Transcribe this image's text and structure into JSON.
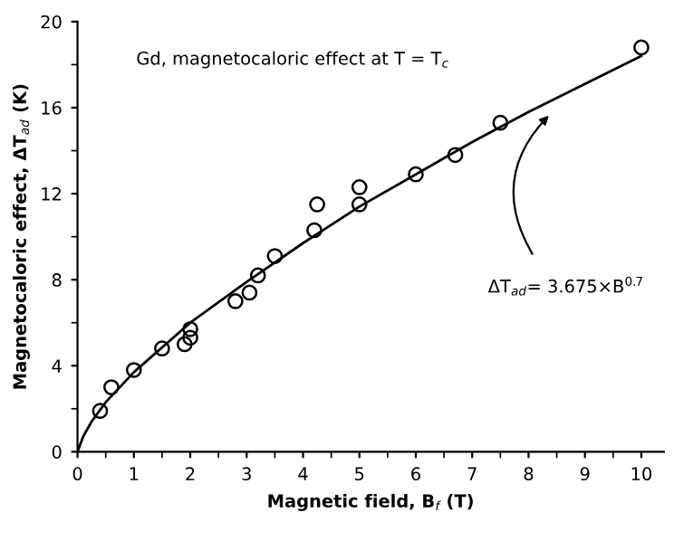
{
  "chart_data": {
    "type": "scatter",
    "xlabel": "Magnetic field, B$_{f}$ (T)",
    "ylabel": "Magnetocaloric effect, ΔT$_{ad}$ (K)",
    "xlim": [
      0,
      10.4
    ],
    "xticks": [
      0,
      1,
      2,
      3,
      4,
      5,
      6,
      7,
      8,
      9,
      10
    ],
    "ylim": [
      0,
      20
    ],
    "yticks": [
      0,
      4,
      8,
      12,
      16,
      20
    ],
    "grid": false,
    "legend": false,
    "annotations": [
      "Gd, magnetocaloric effect at T = T$_{c}$",
      "ΔT$_{ad}$= 3.675×B$^{0.7}$"
    ],
    "series": [
      {
        "color": "#000000",
        "marker": "circle",
        "x": [
          0.4,
          0.6,
          1.0,
          1.5,
          1.9,
          2.0,
          2.0,
          2.8,
          3.05,
          3.2,
          3.5,
          4.2,
          4.25,
          5.0,
          5.0,
          6.0,
          6.7,
          7.5,
          10.0
        ],
        "values": [
          1.9,
          3.0,
          3.8,
          4.8,
          5.0,
          5.3,
          5.7,
          7.0,
          7.4,
          8.2,
          9.1,
          10.3,
          11.5,
          11.5,
          12.3,
          12.9,
          13.8,
          15.3,
          18.8
        ]
      },
      {
        "type": "line",
        "color": "#000000",
        "marker": "none",
        "line_style": "solid",
        "x": [
          0,
          0.1,
          0.25,
          0.5,
          1,
          2,
          3,
          4,
          5,
          6,
          7,
          8,
          9,
          10
        ],
        "values": [
          0,
          0.7,
          1.4,
          2.3,
          3.7,
          6.0,
          7.9,
          9.7,
          11.4,
          12.9,
          14.4,
          15.8,
          17.1,
          18.4
        ]
      }
    ]
  }
}
